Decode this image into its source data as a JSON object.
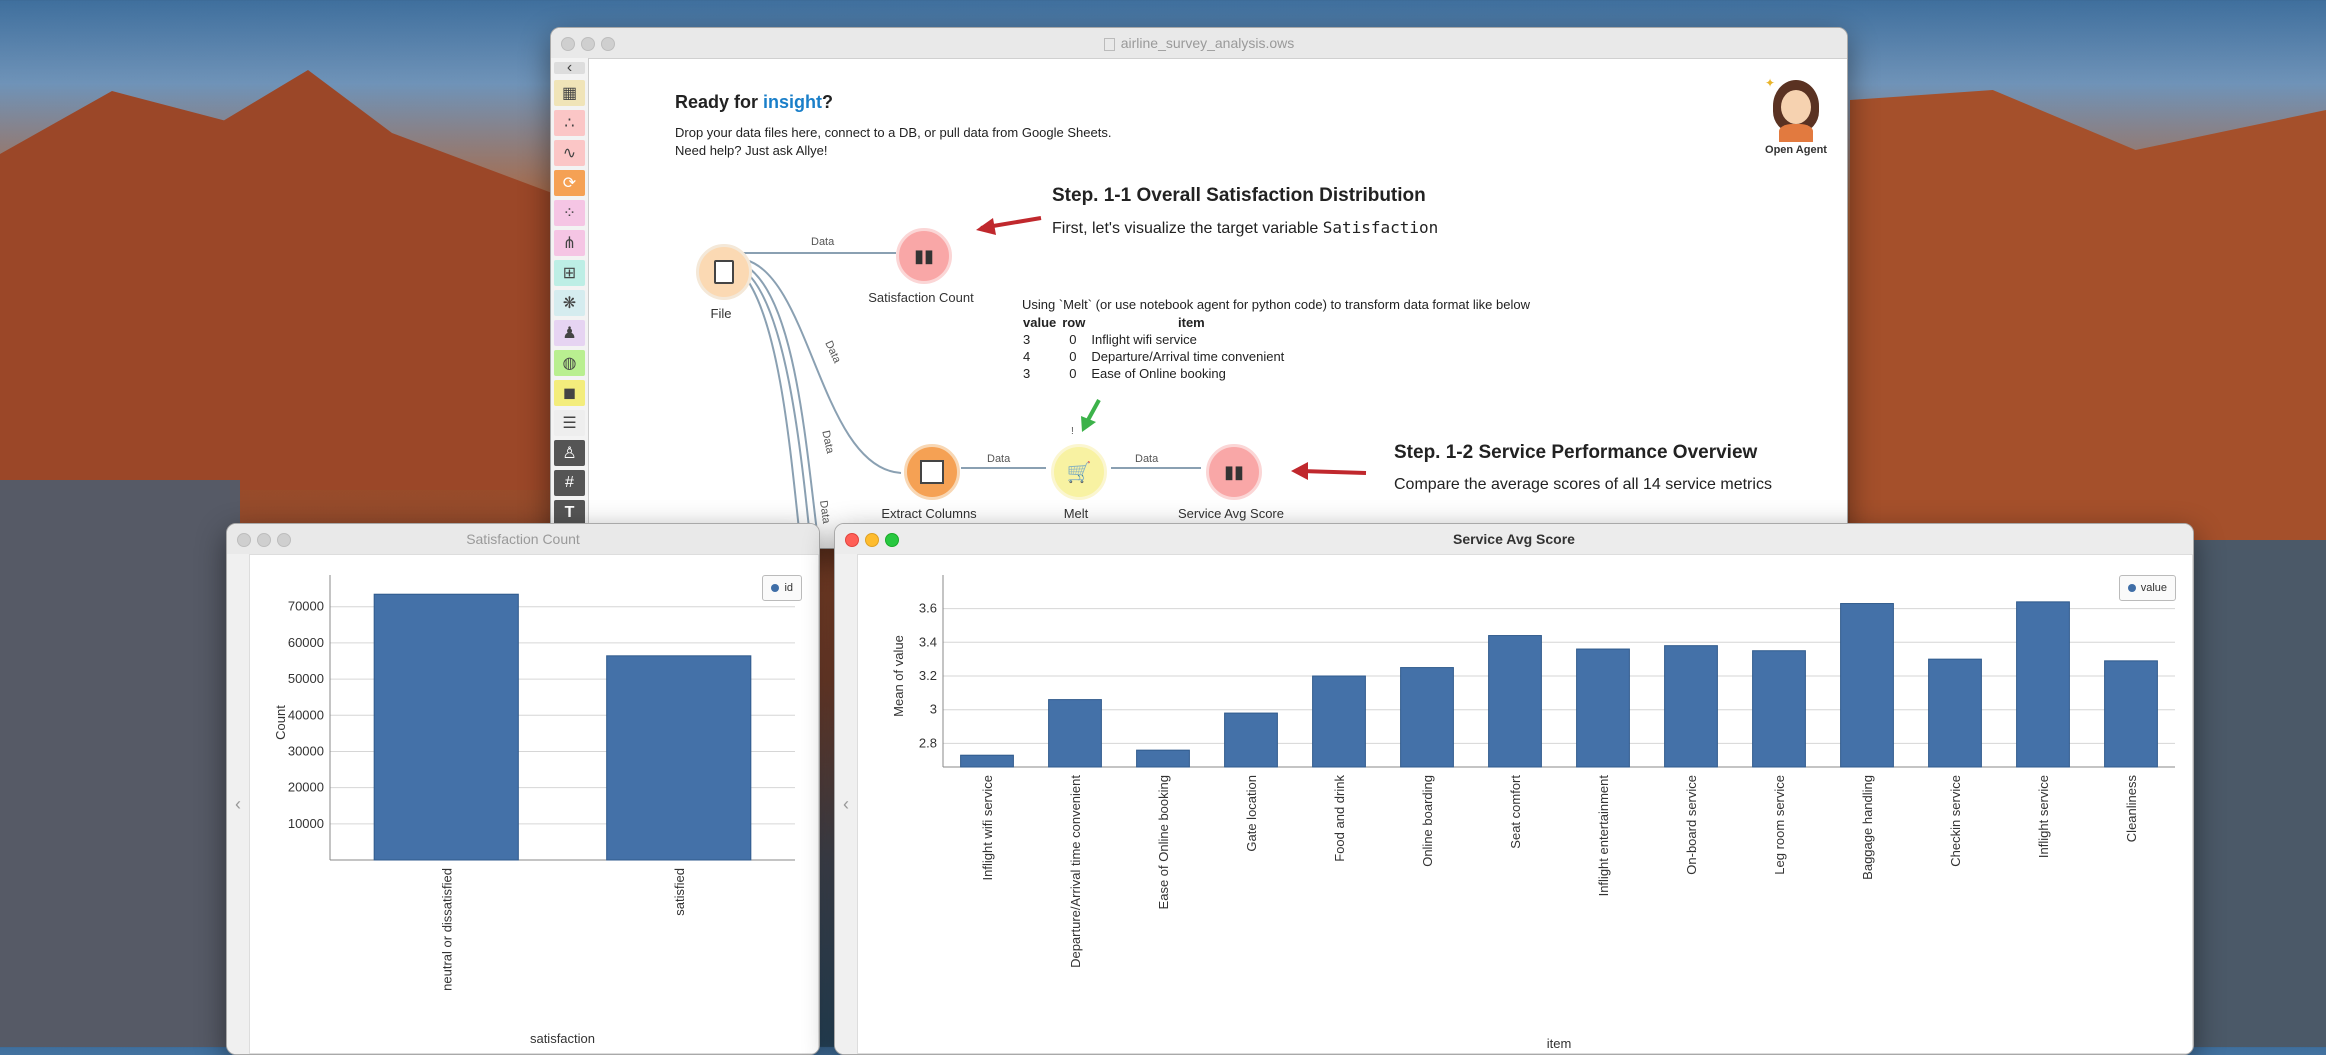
{
  "main_window": {
    "title": "airline_survey_analysis.ows",
    "welcome_title_prefix": "Ready for ",
    "welcome_title_highlight": "insight",
    "welcome_title_suffix": "?",
    "welcome_line1": "Drop your data files here, connect to a DB, or pull data from Google Sheets.",
    "welcome_line2": "Need help? Just ask Allye!",
    "agent_label": "Open Agent",
    "step11_title": "Step. 1-1 Overall Satisfaction Distribution",
    "step11_desc_prefix": "First, let's visualize the target variable ",
    "step11_desc_code": "Satisfaction",
    "melt_note": "Using `Melt` (or use notebook agent for python code) to transform data format like below",
    "melt_table": {
      "headers": [
        "value",
        "row",
        "item"
      ],
      "rows": [
        [
          "3",
          "0",
          "Inflight wifi service"
        ],
        [
          "4",
          "0",
          "Departure/Arrival time convenient"
        ],
        [
          "3",
          "0",
          "Ease of Online booking"
        ]
      ]
    },
    "step12_title": "Step. 1-2 Service Performance Overview",
    "step12_desc": "Compare the average scores of all 14 service metrics",
    "nodes": {
      "file": "File",
      "satisfaction_count": "Satisfaction Count",
      "extract_columns": "Extract Columns",
      "melt": "Melt",
      "service_avg_score": "Service Avg Score"
    },
    "link_label": "Data",
    "melt_badge": "!"
  },
  "colors": {
    "accent_blue": "#1a7fc9",
    "bar": "#4471a8",
    "arrow_red": "#c0282d",
    "arrow_green": "#3cb24a"
  },
  "satisfaction_window": {
    "title": "Satisfaction Count",
    "legend": "id",
    "chart_data": {
      "type": "bar",
      "categories": [
        "neutral or dissatisfied",
        "satisfied"
      ],
      "values": [
        73452,
        56428
      ],
      "xlabel": "satisfaction",
      "ylabel": "Count",
      "yticks": [
        10000,
        20000,
        30000,
        40000,
        50000,
        60000,
        70000
      ],
      "ylim": [
        0,
        76000
      ],
      "grid": true,
      "legend_position": "top-right"
    }
  },
  "service_window": {
    "title": "Service Avg Score",
    "legend": "value",
    "chart_data": {
      "type": "bar",
      "categories": [
        "Inflight wifi service",
        "Departure/Arrival time convenient",
        "Ease of Online booking",
        "Gate location",
        "Food and drink",
        "Online boarding",
        "Seat comfort",
        "Inflight entertainment",
        "On-board service",
        "Leg room service",
        "Baggage handling",
        "Checkin service",
        "Inflight service",
        "Cleanliness"
      ],
      "values": [
        2.73,
        3.06,
        2.76,
        2.98,
        3.2,
        3.25,
        3.44,
        3.36,
        3.38,
        3.35,
        3.63,
        3.3,
        3.64,
        3.29
      ],
      "xlabel": "item",
      "ylabel": "Mean of value",
      "yticks": [
        2.8,
        3.0,
        3.2,
        3.4,
        3.6
      ],
      "ylim": [
        2.66,
        3.74
      ],
      "grid": true,
      "legend_position": "top-right"
    }
  }
}
